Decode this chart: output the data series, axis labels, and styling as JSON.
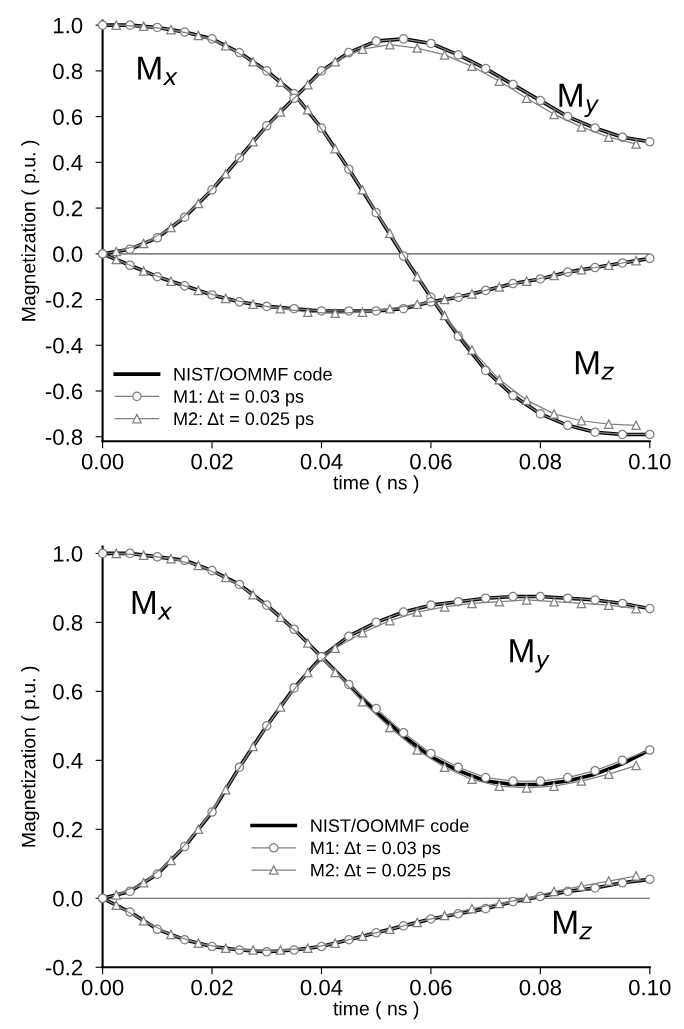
{
  "chart_data": [
    {
      "type": "line",
      "xlabel": "time ( ns )",
      "ylabel": "Magnetization ( p.u. )",
      "xlim": [
        0,
        0.1
      ],
      "xticks": [
        {
          "value": 0,
          "label": "0.00"
        },
        {
          "value": 0.02,
          "label": "0.02"
        },
        {
          "value": 0.04,
          "label": "0.04"
        },
        {
          "value": 0.06,
          "label": "0.06"
        },
        {
          "value": 0.08,
          "label": "0.08"
        },
        {
          "value": 0.1,
          "label": "0.10"
        }
      ],
      "ylim": [
        -0.82,
        1.02
      ],
      "yticks": [
        {
          "value": -0.8,
          "label": "-0.8"
        },
        {
          "value": -0.6,
          "label": "-0.6"
        },
        {
          "value": -0.4,
          "label": "-0.4"
        },
        {
          "value": -0.2,
          "label": "-0.2"
        },
        {
          "value": 0,
          "label": "0.0"
        },
        {
          "value": 0.2,
          "label": "0.2"
        },
        {
          "value": 0.4,
          "label": "0.4"
        },
        {
          "value": 0.6,
          "label": "0.6"
        },
        {
          "value": 0.8,
          "label": "0.8"
        },
        {
          "value": 1,
          "label": "1.0"
        }
      ],
      "legend": "bottom left",
      "line_style": "solid",
      "x": [
        0,
        0.005,
        0.01,
        0.015,
        0.02,
        0.025,
        0.03,
        0.035,
        0.04,
        0.045,
        0.05,
        0.055,
        0.06,
        0.065,
        0.07,
        0.075,
        0.08,
        0.085,
        0.09,
        0.095,
        0.1
      ],
      "ref_lines": [
        {
          "axis": "y",
          "value": 0,
          "color": "#555555"
        }
      ],
      "annotations": [
        "M$_{x}$",
        "M$_{y}$",
        "M$_{z}$"
      ],
      "series": [
        {
          "name": "NIST/OOMMF code",
          "color": "#000000",
          "marker": "none",
          "values": [
            1.0,
            1.0,
            0.99,
            0.97,
            0.94,
            0.88,
            0.8,
            0.7,
            0.55,
            0.37,
            0.18,
            -0.01,
            -0.19,
            -0.36,
            -0.51,
            -0.62,
            -0.7,
            -0.75,
            -0.78,
            -0.79,
            -0.79
          ]
        },
        {
          "name": "M1: Δt = 0.03 ps",
          "color": "#808080",
          "marker": "circle",
          "values": [
            1.0,
            1.0,
            0.99,
            0.97,
            0.94,
            0.88,
            0.8,
            0.7,
            0.55,
            0.37,
            0.18,
            -0.01,
            -0.19,
            -0.36,
            -0.51,
            -0.62,
            -0.7,
            -0.75,
            -0.78,
            -0.79,
            -0.79
          ]
        },
        {
          "name": "M2: Δt = 0.025 ps",
          "color": "#808080",
          "marker": "triangle",
          "x": [
            0.0025,
            0.0075,
            0.0125,
            0.0175,
            0.0225,
            0.0275,
            0.0325,
            0.0375,
            0.0425,
            0.0475,
            0.0525,
            0.0575,
            0.0625,
            0.0675,
            0.0725,
            0.0775,
            0.0825,
            0.0875,
            0.0925,
            0.0975
          ],
          "values": [
            1.0,
            0.995,
            0.98,
            0.955,
            0.91,
            0.84,
            0.75,
            0.63,
            0.46,
            0.28,
            0.09,
            -0.1,
            -0.27,
            -0.42,
            -0.55,
            -0.64,
            -0.7,
            -0.73,
            -0.745,
            -0.75
          ]
        },
        {
          "color": "#000000",
          "marker": "none",
          "values": [
            0.0,
            0.02,
            0.07,
            0.16,
            0.28,
            0.42,
            0.56,
            0.68,
            0.8,
            0.88,
            0.93,
            0.94,
            0.92,
            0.87,
            0.81,
            0.74,
            0.67,
            0.6,
            0.55,
            0.51,
            0.49
          ]
        },
        {
          "color": "#808080",
          "marker": "circle",
          "values": [
            0.0,
            0.02,
            0.07,
            0.16,
            0.28,
            0.42,
            0.56,
            0.68,
            0.8,
            0.88,
            0.93,
            0.94,
            0.92,
            0.87,
            0.81,
            0.74,
            0.67,
            0.6,
            0.55,
            0.51,
            0.49
          ]
        },
        {
          "color": "#808080",
          "marker": "triangle",
          "x": [
            0.0025,
            0.0075,
            0.0125,
            0.0175,
            0.0225,
            0.0275,
            0.0325,
            0.0375,
            0.0425,
            0.0475,
            0.0525,
            0.0575,
            0.0625,
            0.0675,
            0.0725,
            0.0775,
            0.0825,
            0.0875,
            0.0925,
            0.0975
          ],
          "values": [
            0.01,
            0.045,
            0.115,
            0.22,
            0.35,
            0.49,
            0.62,
            0.74,
            0.84,
            0.895,
            0.915,
            0.9,
            0.87,
            0.82,
            0.755,
            0.68,
            0.61,
            0.555,
            0.51,
            0.48
          ]
        },
        {
          "color": "#000000",
          "marker": "none",
          "values": [
            0.0,
            -0.05,
            -0.1,
            -0.14,
            -0.18,
            -0.21,
            -0.23,
            -0.24,
            -0.25,
            -0.25,
            -0.25,
            -0.24,
            -0.21,
            -0.19,
            -0.16,
            -0.13,
            -0.11,
            -0.08,
            -0.06,
            -0.04,
            -0.02
          ]
        },
        {
          "color": "#808080",
          "marker": "circle",
          "values": [
            0.0,
            -0.05,
            -0.1,
            -0.14,
            -0.18,
            -0.21,
            -0.23,
            -0.24,
            -0.25,
            -0.25,
            -0.25,
            -0.24,
            -0.21,
            -0.19,
            -0.16,
            -0.13,
            -0.11,
            -0.08,
            -0.06,
            -0.04,
            -0.02
          ]
        },
        {
          "color": "#808080",
          "marker": "triangle",
          "x": [
            0.0025,
            0.0075,
            0.0125,
            0.0175,
            0.0225,
            0.0275,
            0.0325,
            0.0375,
            0.0425,
            0.0475,
            0.0525,
            0.0575,
            0.0625,
            0.0675,
            0.0725,
            0.0775,
            0.0825,
            0.0875,
            0.0925,
            0.0975
          ],
          "values": [
            -0.025,
            -0.075,
            -0.12,
            -0.16,
            -0.195,
            -0.22,
            -0.24,
            -0.255,
            -0.26,
            -0.255,
            -0.24,
            -0.22,
            -0.2,
            -0.175,
            -0.145,
            -0.12,
            -0.095,
            -0.07,
            -0.05,
            -0.03
          ]
        }
      ]
    },
    {
      "type": "line",
      "xlabel": "time ( ns )",
      "ylabel": "Magnetization ( p.u. )",
      "xlim": [
        0,
        0.1
      ],
      "xticks": [
        {
          "value": 0,
          "label": "0.00"
        },
        {
          "value": 0.02,
          "label": "0.02"
        },
        {
          "value": 0.04,
          "label": "0.04"
        },
        {
          "value": 0.06,
          "label": "0.06"
        },
        {
          "value": 0.08,
          "label": "0.08"
        },
        {
          "value": 0.1,
          "label": "0.10"
        }
      ],
      "ylim": [
        -0.2,
        1.02
      ],
      "yticks": [
        {
          "value": -0.2,
          "label": "-0.2"
        },
        {
          "value": 0,
          "label": "0.0"
        },
        {
          "value": 0.2,
          "label": "0.2"
        },
        {
          "value": 0.4,
          "label": "0.4"
        },
        {
          "value": 0.6,
          "label": "0.6"
        },
        {
          "value": 0.8,
          "label": "0.8"
        },
        {
          "value": 1,
          "label": "1.0"
        }
      ],
      "legend": "center",
      "line_style": "solid",
      "x": [
        0,
        0.005,
        0.01,
        0.015,
        0.02,
        0.025,
        0.03,
        0.035,
        0.04,
        0.045,
        0.05,
        0.055,
        0.06,
        0.065,
        0.07,
        0.075,
        0.08,
        0.085,
        0.09,
        0.095,
        0.1
      ],
      "ref_lines": [
        {
          "axis": "y",
          "value": 0,
          "color": "#555555"
        }
      ],
      "annotations": [
        "M$_{x}$",
        "M$_{y}$",
        "M$_{z}$"
      ],
      "series": [
        {
          "name": "NIST/OOMMF code",
          "color": "#000000",
          "marker": "none",
          "values": [
            1.0,
            1.0,
            0.99,
            0.98,
            0.95,
            0.91,
            0.85,
            0.78,
            0.7,
            0.62,
            0.54,
            0.47,
            0.41,
            0.37,
            0.34,
            0.33,
            0.33,
            0.34,
            0.36,
            0.39,
            0.43
          ]
        },
        {
          "name": "M1: Δt = 0.03 ps",
          "color": "#808080",
          "marker": "circle",
          "values": [
            1.0,
            1.0,
            0.99,
            0.98,
            0.95,
            0.91,
            0.85,
            0.78,
            0.7,
            0.62,
            0.55,
            0.48,
            0.42,
            0.38,
            0.35,
            0.34,
            0.34,
            0.35,
            0.37,
            0.4,
            0.43
          ]
        },
        {
          "name": "M2: Δt = 0.025 ps",
          "color": "#808080",
          "marker": "triangle",
          "x": [
            0.0025,
            0.0075,
            0.0125,
            0.0175,
            0.0225,
            0.0275,
            0.0325,
            0.0375,
            0.0425,
            0.0475,
            0.0525,
            0.0575,
            0.0625,
            0.0675,
            0.0725,
            0.0775,
            0.0825,
            0.0875,
            0.0925,
            0.0975
          ],
          "values": [
            1.0,
            0.995,
            0.985,
            0.965,
            0.93,
            0.88,
            0.815,
            0.74,
            0.655,
            0.57,
            0.495,
            0.43,
            0.38,
            0.345,
            0.325,
            0.32,
            0.325,
            0.34,
            0.36,
            0.385
          ]
        },
        {
          "color": "#000000",
          "marker": "none",
          "values": [
            0.0,
            0.02,
            0.07,
            0.15,
            0.25,
            0.38,
            0.5,
            0.61,
            0.7,
            0.76,
            0.8,
            0.83,
            0.85,
            0.86,
            0.87,
            0.875,
            0.875,
            0.87,
            0.865,
            0.855,
            0.84
          ]
        },
        {
          "color": "#808080",
          "marker": "circle",
          "values": [
            0.0,
            0.02,
            0.07,
            0.15,
            0.25,
            0.38,
            0.5,
            0.61,
            0.7,
            0.76,
            0.8,
            0.83,
            0.85,
            0.86,
            0.87,
            0.875,
            0.875,
            0.87,
            0.865,
            0.855,
            0.84
          ]
        },
        {
          "color": "#808080",
          "marker": "triangle",
          "x": [
            0.0025,
            0.0075,
            0.0125,
            0.0175,
            0.0225,
            0.0275,
            0.0325,
            0.0375,
            0.0425,
            0.0475,
            0.0525,
            0.0575,
            0.0625,
            0.0675,
            0.0725,
            0.0775,
            0.0825,
            0.0875,
            0.0925,
            0.0975
          ],
          "values": [
            0.01,
            0.045,
            0.11,
            0.2,
            0.315,
            0.44,
            0.555,
            0.655,
            0.725,
            0.77,
            0.805,
            0.83,
            0.845,
            0.855,
            0.86,
            0.865,
            0.86,
            0.855,
            0.85,
            0.84
          ]
        },
        {
          "color": "#000000",
          "marker": "none",
          "values": [
            0.0,
            -0.04,
            -0.09,
            -0.12,
            -0.14,
            -0.15,
            -0.155,
            -0.15,
            -0.14,
            -0.12,
            -0.1,
            -0.08,
            -0.06,
            -0.045,
            -0.03,
            -0.01,
            0.005,
            0.02,
            0.03,
            0.045,
            0.055
          ]
        },
        {
          "color": "#808080",
          "marker": "circle",
          "values": [
            0.0,
            -0.04,
            -0.09,
            -0.12,
            -0.14,
            -0.15,
            -0.155,
            -0.15,
            -0.14,
            -0.12,
            -0.1,
            -0.08,
            -0.06,
            -0.045,
            -0.03,
            -0.01,
            0.005,
            0.02,
            0.03,
            0.045,
            0.055
          ]
        },
        {
          "color": "#808080",
          "marker": "triangle",
          "x": [
            0.0025,
            0.0075,
            0.0125,
            0.0175,
            0.0225,
            0.0275,
            0.0325,
            0.0375,
            0.0425,
            0.0475,
            0.0525,
            0.0575,
            0.0625,
            0.0675,
            0.0725,
            0.0775,
            0.0825,
            0.0875,
            0.0925,
            0.0975
          ],
          "values": [
            -0.02,
            -0.065,
            -0.105,
            -0.13,
            -0.145,
            -0.15,
            -0.15,
            -0.145,
            -0.13,
            -0.11,
            -0.09,
            -0.07,
            -0.05,
            -0.03,
            -0.015,
            0.0,
            0.02,
            0.035,
            0.05,
            0.065
          ]
        }
      ]
    }
  ]
}
